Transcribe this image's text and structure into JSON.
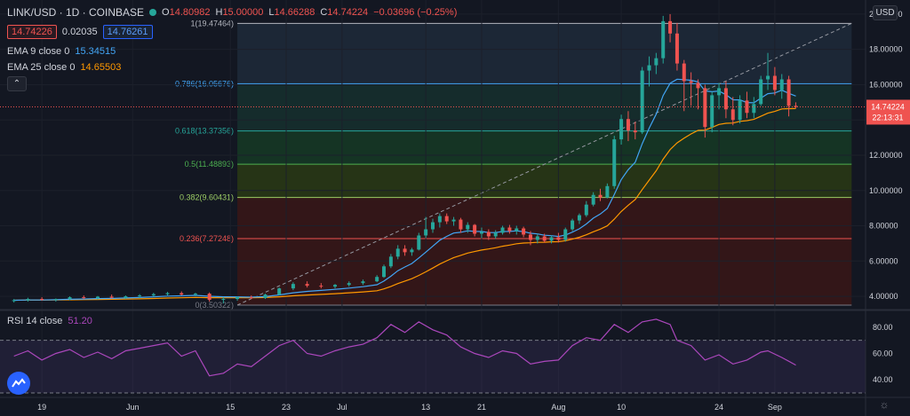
{
  "header": {
    "symbol": "LINK/USD · 1D · COINBASE",
    "o_label": "O",
    "o": "14.80982",
    "h_label": "H",
    "h": "15.00000",
    "l_label": "L",
    "l": "14.66288",
    "c_label": "C",
    "c": "14.74224",
    "change": "−0.03696 (−0.25%)",
    "bid": "14.74226",
    "spread": "0.02035",
    "ask": "14.76261",
    "status_color": "#26a69a"
  },
  "indicators": {
    "ema9_label": "EMA 9 close 0",
    "ema9_value": "15.34515",
    "ema25_label": "EMA 25 close 0",
    "ema25_value": "14.65503",
    "collapse_icon": "chevron-up-icon"
  },
  "rsi": {
    "label": "RSI 14 close",
    "value": "51.20"
  },
  "axis": {
    "currency": "USD",
    "price_ticks": [
      "20.00000",
      "18.00000",
      "16.00000",
      "14.00000",
      "12.00000",
      "10.00000",
      "8.00000",
      "6.00000",
      "4.00000"
    ],
    "rsi_ticks": [
      "80.00",
      "60.00",
      "40.00"
    ],
    "date_ticks": [
      {
        "label": "19",
        "date": "2020-05-19"
      },
      {
        "label": "Jun",
        "date": "2020-06-01"
      },
      {
        "label": "15",
        "date": "2020-06-15"
      },
      {
        "label": "23",
        "date": "2020-06-23"
      },
      {
        "label": "Jul",
        "date": "2020-07-01"
      },
      {
        "label": "13",
        "date": "2020-07-13"
      },
      {
        "label": "21",
        "date": "2020-07-21"
      },
      {
        "label": "Aug",
        "date": "2020-08-01"
      },
      {
        "label": "10",
        "date": "2020-08-10"
      },
      {
        "label": "24",
        "date": "2020-08-24"
      },
      {
        "label": "Sep",
        "date": "2020-09-01"
      }
    ],
    "last_price": "14.74224",
    "countdown": "22:13:31"
  },
  "chart_data": {
    "type": "candlestick",
    "ylim": [
      3.3,
      20.8
    ],
    "fib_levels": [
      {
        "label": "1(19.47464)",
        "value": 19.47464,
        "color": "#b2b5be",
        "fill": "#262a33"
      },
      {
        "label": "0.786(16.05676)",
        "value": 16.05676,
        "color": "#42a5f5",
        "fill": "#1e2a3a"
      },
      {
        "label": "0.618(13.37356)",
        "value": 13.37356,
        "color": "#26a69a",
        "fill": "#16302e"
      },
      {
        "label": "0.5(11.48893)",
        "value": 11.48893,
        "color": "#4caf50",
        "fill": "#163a25"
      },
      {
        "label": "0.382(9.60431)",
        "value": 9.60431,
        "color": "#9ccc65",
        "fill": "#2a3a14"
      },
      {
        "label": "0.236(7.27248)",
        "value": 7.27248,
        "color": "#ef5350",
        "fill": "#3a1616"
      },
      {
        "label": "0(3.50322)",
        "value": 3.50322,
        "color": "#787b86",
        "fill": "#3a1616"
      }
    ],
    "candles": [
      {
        "d": "2020-05-15",
        "o": 3.75,
        "h": 3.85,
        "l": 3.65,
        "c": 3.78
      },
      {
        "d": "2020-05-17",
        "o": 3.78,
        "h": 3.92,
        "l": 3.7,
        "c": 3.85
      },
      {
        "d": "2020-05-19",
        "o": 3.85,
        "h": 3.95,
        "l": 3.75,
        "c": 3.8
      },
      {
        "d": "2020-05-21",
        "o": 3.8,
        "h": 3.88,
        "l": 3.7,
        "c": 3.85
      },
      {
        "d": "2020-05-23",
        "o": 3.85,
        "h": 4.0,
        "l": 3.78,
        "c": 3.95
      },
      {
        "d": "2020-05-25",
        "o": 3.95,
        "h": 4.05,
        "l": 3.85,
        "c": 3.9
      },
      {
        "d": "2020-05-27",
        "o": 3.9,
        "h": 4.02,
        "l": 3.82,
        "c": 3.98
      },
      {
        "d": "2020-05-29",
        "o": 3.98,
        "h": 4.1,
        "l": 3.88,
        "c": 3.92
      },
      {
        "d": "2020-05-31",
        "o": 3.92,
        "h": 4.05,
        "l": 3.85,
        "c": 4.0
      },
      {
        "d": "2020-06-02",
        "o": 4.0,
        "h": 4.12,
        "l": 3.9,
        "c": 4.05
      },
      {
        "d": "2020-06-04",
        "o": 4.05,
        "h": 4.2,
        "l": 3.98,
        "c": 4.12
      },
      {
        "d": "2020-06-06",
        "o": 4.12,
        "h": 4.25,
        "l": 4.05,
        "c": 4.18
      },
      {
        "d": "2020-06-08",
        "o": 4.18,
        "h": 4.28,
        "l": 4.05,
        "c": 4.1
      },
      {
        "d": "2020-06-10",
        "o": 4.1,
        "h": 4.2,
        "l": 4.0,
        "c": 4.15
      },
      {
        "d": "2020-06-12",
        "o": 4.15,
        "h": 4.22,
        "l": 3.7,
        "c": 3.8
      },
      {
        "d": "2020-06-14",
        "o": 3.8,
        "h": 3.95,
        "l": 3.6,
        "c": 3.85
      },
      {
        "d": "2020-06-16",
        "o": 3.85,
        "h": 4.0,
        "l": 3.75,
        "c": 3.95
      },
      {
        "d": "2020-06-18",
        "o": 3.95,
        "h": 4.05,
        "l": 3.85,
        "c": 3.9
      },
      {
        "d": "2020-06-20",
        "o": 3.9,
        "h": 4.15,
        "l": 3.85,
        "c": 4.1
      },
      {
        "d": "2020-06-22",
        "o": 4.1,
        "h": 4.5,
        "l": 4.05,
        "c": 4.45
      },
      {
        "d": "2020-06-24",
        "o": 4.45,
        "h": 4.8,
        "l": 4.35,
        "c": 4.7
      },
      {
        "d": "2020-06-26",
        "o": 4.7,
        "h": 4.85,
        "l": 4.5,
        "c": 4.6
      },
      {
        "d": "2020-06-28",
        "o": 4.6,
        "h": 4.75,
        "l": 4.45,
        "c": 4.55
      },
      {
        "d": "2020-06-30",
        "o": 4.55,
        "h": 4.7,
        "l": 4.45,
        "c": 4.65
      },
      {
        "d": "2020-07-02",
        "o": 4.65,
        "h": 4.85,
        "l": 4.55,
        "c": 4.75
      },
      {
        "d": "2020-07-04",
        "o": 4.75,
        "h": 4.95,
        "l": 4.65,
        "c": 4.85
      },
      {
        "d": "2020-07-06",
        "o": 4.85,
        "h": 5.2,
        "l": 4.8,
        "c": 5.1
      },
      {
        "d": "2020-07-07",
        "o": 5.1,
        "h": 5.8,
        "l": 5.05,
        "c": 5.7
      },
      {
        "d": "2020-07-08",
        "o": 5.7,
        "h": 6.4,
        "l": 5.6,
        "c": 6.25
      },
      {
        "d": "2020-07-09",
        "o": 6.25,
        "h": 6.9,
        "l": 6.1,
        "c": 6.7
      },
      {
        "d": "2020-07-10",
        "o": 6.7,
        "h": 6.9,
        "l": 6.3,
        "c": 6.5
      },
      {
        "d": "2020-07-11",
        "o": 6.5,
        "h": 6.75,
        "l": 6.3,
        "c": 6.65
      },
      {
        "d": "2020-07-12",
        "o": 6.65,
        "h": 7.6,
        "l": 6.6,
        "c": 7.45
      },
      {
        "d": "2020-07-13",
        "o": 7.45,
        "h": 8.5,
        "l": 7.3,
        "c": 7.8
      },
      {
        "d": "2020-07-14",
        "o": 7.8,
        "h": 8.4,
        "l": 7.6,
        "c": 8.2
      },
      {
        "d": "2020-07-15",
        "o": 8.2,
        "h": 8.7,
        "l": 7.9,
        "c": 8.55
      },
      {
        "d": "2020-07-16",
        "o": 8.55,
        "h": 8.7,
        "l": 8.1,
        "c": 8.25
      },
      {
        "d": "2020-07-17",
        "o": 8.25,
        "h": 8.5,
        "l": 8.0,
        "c": 8.35
      },
      {
        "d": "2020-07-18",
        "o": 8.35,
        "h": 8.45,
        "l": 7.6,
        "c": 7.8
      },
      {
        "d": "2020-07-19",
        "o": 7.8,
        "h": 8.2,
        "l": 7.6,
        "c": 8.05
      },
      {
        "d": "2020-07-20",
        "o": 8.05,
        "h": 8.1,
        "l": 7.4,
        "c": 7.55
      },
      {
        "d": "2020-07-21",
        "o": 7.55,
        "h": 7.9,
        "l": 7.3,
        "c": 7.65
      },
      {
        "d": "2020-07-22",
        "o": 7.65,
        "h": 7.8,
        "l": 7.2,
        "c": 7.4
      },
      {
        "d": "2020-07-23",
        "o": 7.4,
        "h": 7.75,
        "l": 7.25,
        "c": 7.6
      },
      {
        "d": "2020-07-24",
        "o": 7.6,
        "h": 8.0,
        "l": 7.5,
        "c": 7.9
      },
      {
        "d": "2020-07-25",
        "o": 7.9,
        "h": 8.05,
        "l": 7.55,
        "c": 7.7
      },
      {
        "d": "2020-07-26",
        "o": 7.7,
        "h": 8.0,
        "l": 7.5,
        "c": 7.85
      },
      {
        "d": "2020-07-27",
        "o": 7.85,
        "h": 7.95,
        "l": 7.35,
        "c": 7.5
      },
      {
        "d": "2020-07-28",
        "o": 7.5,
        "h": 7.7,
        "l": 6.9,
        "c": 7.2
      },
      {
        "d": "2020-07-29",
        "o": 7.2,
        "h": 7.55,
        "l": 7.0,
        "c": 7.4
      },
      {
        "d": "2020-07-30",
        "o": 7.4,
        "h": 7.55,
        "l": 7.05,
        "c": 7.15
      },
      {
        "d": "2020-07-31",
        "o": 7.15,
        "h": 7.45,
        "l": 7.0,
        "c": 7.35
      },
      {
        "d": "2020-08-01",
        "o": 7.35,
        "h": 7.6,
        "l": 7.05,
        "c": 7.2
      },
      {
        "d": "2020-08-02",
        "o": 7.2,
        "h": 7.9,
        "l": 7.1,
        "c": 7.8
      },
      {
        "d": "2020-08-03",
        "o": 7.8,
        "h": 8.4,
        "l": 7.7,
        "c": 8.3
      },
      {
        "d": "2020-08-04",
        "o": 8.3,
        "h": 8.7,
        "l": 8.1,
        "c": 8.6
      },
      {
        "d": "2020-08-05",
        "o": 8.6,
        "h": 9.4,
        "l": 8.5,
        "c": 9.2
      },
      {
        "d": "2020-08-06",
        "o": 9.2,
        "h": 9.9,
        "l": 9.1,
        "c": 9.75
      },
      {
        "d": "2020-08-07",
        "o": 9.75,
        "h": 10.1,
        "l": 9.4,
        "c": 9.6
      },
      {
        "d": "2020-08-08",
        "o": 9.6,
        "h": 10.4,
        "l": 9.55,
        "c": 10.25
      },
      {
        "d": "2020-08-09",
        "o": 10.25,
        "h": 13.1,
        "l": 10.1,
        "c": 12.9
      },
      {
        "d": "2020-08-10",
        "o": 12.9,
        "h": 14.3,
        "l": 12.6,
        "c": 14.05
      },
      {
        "d": "2020-08-11",
        "o": 14.05,
        "h": 14.5,
        "l": 12.8,
        "c": 13.4
      },
      {
        "d": "2020-08-12",
        "o": 13.4,
        "h": 13.9,
        "l": 12.9,
        "c": 13.3
      },
      {
        "d": "2020-08-13",
        "o": 13.3,
        "h": 17.0,
        "l": 13.2,
        "c": 16.8
      },
      {
        "d": "2020-08-14",
        "o": 16.8,
        "h": 17.6,
        "l": 15.9,
        "c": 17.1
      },
      {
        "d": "2020-08-15",
        "o": 17.1,
        "h": 17.8,
        "l": 16.6,
        "c": 17.5
      },
      {
        "d": "2020-08-16",
        "o": 17.5,
        "h": 19.9,
        "l": 17.2,
        "c": 19.6
      },
      {
        "d": "2020-08-17",
        "o": 19.6,
        "h": 20.0,
        "l": 18.4,
        "c": 18.9
      },
      {
        "d": "2020-08-18",
        "o": 18.9,
        "h": 19.5,
        "l": 16.8,
        "c": 17.2
      },
      {
        "d": "2020-08-19",
        "o": 17.2,
        "h": 17.4,
        "l": 14.5,
        "c": 16.2
      },
      {
        "d": "2020-08-20",
        "o": 16.2,
        "h": 16.7,
        "l": 14.8,
        "c": 16.1
      },
      {
        "d": "2020-08-21",
        "o": 16.1,
        "h": 16.3,
        "l": 14.6,
        "c": 15.8
      },
      {
        "d": "2020-08-22",
        "o": 15.8,
        "h": 16.0,
        "l": 13.0,
        "c": 13.6
      },
      {
        "d": "2020-08-23",
        "o": 13.6,
        "h": 15.6,
        "l": 13.3,
        "c": 15.4
      },
      {
        "d": "2020-08-24",
        "o": 15.4,
        "h": 16.1,
        "l": 14.6,
        "c": 15.8
      },
      {
        "d": "2020-08-25",
        "o": 15.8,
        "h": 16.2,
        "l": 14.1,
        "c": 14.6
      },
      {
        "d": "2020-08-26",
        "o": 14.6,
        "h": 15.3,
        "l": 13.7,
        "c": 14.0
      },
      {
        "d": "2020-08-27",
        "o": 14.0,
        "h": 15.4,
        "l": 13.8,
        "c": 15.1
      },
      {
        "d": "2020-08-28",
        "o": 15.1,
        "h": 15.6,
        "l": 14.1,
        "c": 14.4
      },
      {
        "d": "2020-08-29",
        "o": 14.4,
        "h": 15.3,
        "l": 14.1,
        "c": 14.9
      },
      {
        "d": "2020-08-30",
        "o": 14.9,
        "h": 16.5,
        "l": 14.8,
        "c": 16.3
      },
      {
        "d": "2020-08-31",
        "o": 16.3,
        "h": 17.8,
        "l": 15.7,
        "c": 16.5
      },
      {
        "d": "2020-09-01",
        "o": 16.5,
        "h": 17.0,
        "l": 15.4,
        "c": 15.7
      },
      {
        "d": "2020-09-02",
        "o": 15.7,
        "h": 16.6,
        "l": 15.2,
        "c": 16.3
      },
      {
        "d": "2020-09-03",
        "o": 16.3,
        "h": 16.5,
        "l": 14.2,
        "c": 14.8
      },
      {
        "d": "2020-09-04",
        "o": 14.8,
        "h": 15.0,
        "l": 14.66,
        "c": 14.74
      }
    ],
    "rsi_series": [
      {
        "d": "2020-05-15",
        "v": 58
      },
      {
        "d": "2020-05-17",
        "v": 62
      },
      {
        "d": "2020-05-19",
        "v": 55
      },
      {
        "d": "2020-05-21",
        "v": 60
      },
      {
        "d": "2020-05-23",
        "v": 63
      },
      {
        "d": "2020-05-25",
        "v": 57
      },
      {
        "d": "2020-05-27",
        "v": 61
      },
      {
        "d": "2020-05-29",
        "v": 56
      },
      {
        "d": "2020-05-31",
        "v": 62
      },
      {
        "d": "2020-06-02",
        "v": 64
      },
      {
        "d": "2020-06-04",
        "v": 66
      },
      {
        "d": "2020-06-06",
        "v": 68
      },
      {
        "d": "2020-06-08",
        "v": 58
      },
      {
        "d": "2020-06-10",
        "v": 62
      },
      {
        "d": "2020-06-12",
        "v": 43
      },
      {
        "d": "2020-06-14",
        "v": 45
      },
      {
        "d": "2020-06-16",
        "v": 52
      },
      {
        "d": "2020-06-18",
        "v": 50
      },
      {
        "d": "2020-06-20",
        "v": 58
      },
      {
        "d": "2020-06-22",
        "v": 66
      },
      {
        "d": "2020-06-24",
        "v": 70
      },
      {
        "d": "2020-06-26",
        "v": 60
      },
      {
        "d": "2020-06-28",
        "v": 58
      },
      {
        "d": "2020-06-30",
        "v": 62
      },
      {
        "d": "2020-07-02",
        "v": 65
      },
      {
        "d": "2020-07-04",
        "v": 67
      },
      {
        "d": "2020-07-06",
        "v": 72
      },
      {
        "d": "2020-07-08",
        "v": 82
      },
      {
        "d": "2020-07-10",
        "v": 76
      },
      {
        "d": "2020-07-12",
        "v": 84
      },
      {
        "d": "2020-07-14",
        "v": 78
      },
      {
        "d": "2020-07-16",
        "v": 74
      },
      {
        "d": "2020-07-18",
        "v": 65
      },
      {
        "d": "2020-07-20",
        "v": 60
      },
      {
        "d": "2020-07-22",
        "v": 57
      },
      {
        "d": "2020-07-24",
        "v": 62
      },
      {
        "d": "2020-07-26",
        "v": 60
      },
      {
        "d": "2020-07-28",
        "v": 52
      },
      {
        "d": "2020-07-30",
        "v": 54
      },
      {
        "d": "2020-08-01",
        "v": 55
      },
      {
        "d": "2020-08-03",
        "v": 66
      },
      {
        "d": "2020-08-05",
        "v": 72
      },
      {
        "d": "2020-08-07",
        "v": 70
      },
      {
        "d": "2020-08-09",
        "v": 82
      },
      {
        "d": "2020-08-11",
        "v": 76
      },
      {
        "d": "2020-08-13",
        "v": 84
      },
      {
        "d": "2020-08-15",
        "v": 86
      },
      {
        "d": "2020-08-17",
        "v": 82
      },
      {
        "d": "2020-08-18",
        "v": 70
      },
      {
        "d": "2020-08-20",
        "v": 66
      },
      {
        "d": "2020-08-22",
        "v": 55
      },
      {
        "d": "2020-08-24",
        "v": 59
      },
      {
        "d": "2020-08-26",
        "v": 52
      },
      {
        "d": "2020-08-28",
        "v": 55
      },
      {
        "d": "2020-08-30",
        "v": 61
      },
      {
        "d": "2020-08-31",
        "v": 62
      },
      {
        "d": "2020-09-02",
        "v": 57
      },
      {
        "d": "2020-09-04",
        "v": 51.2
      }
    ],
    "rsi_ylim": [
      28,
      92
    ],
    "rsi_bands": [
      70,
      30
    ]
  }
}
